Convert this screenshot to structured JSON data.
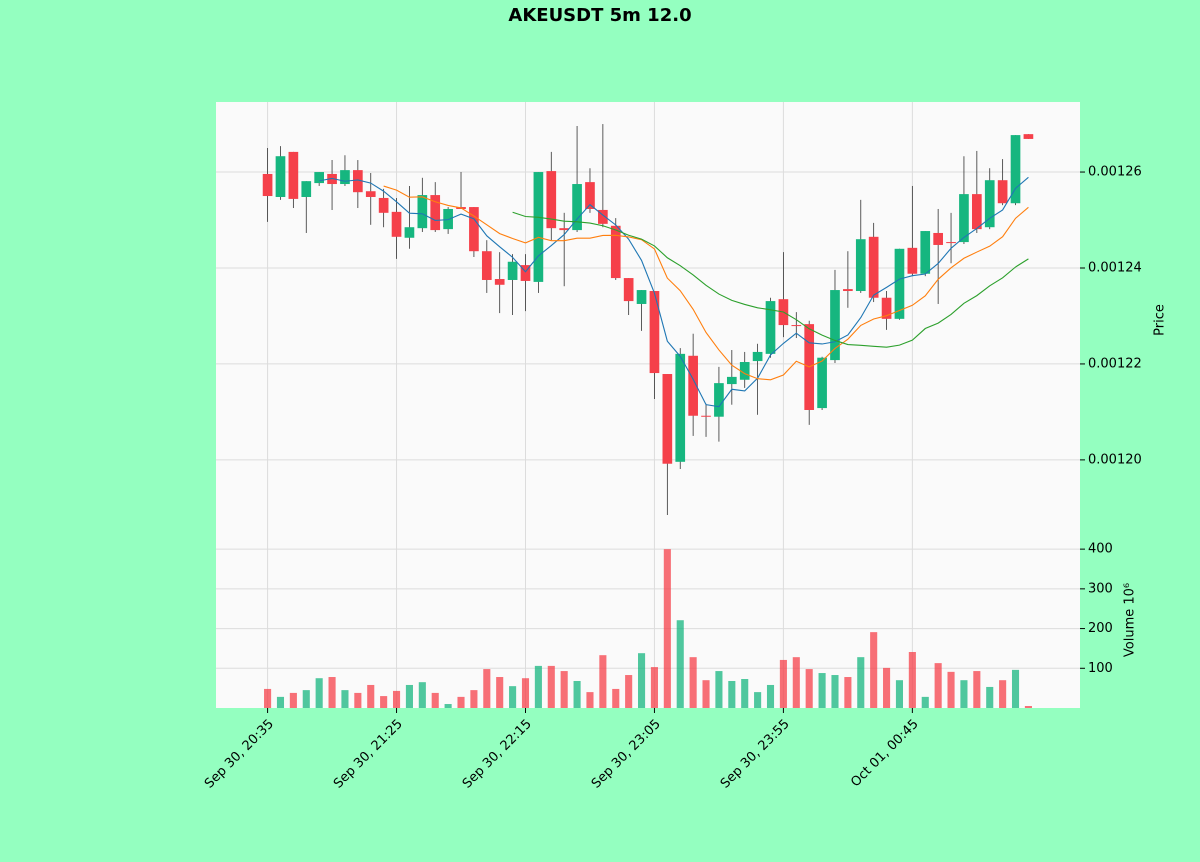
{
  "chart_data": {
    "type": "candlestick",
    "title": "AKEUSDT 5m 12.0",
    "ylabel": "Price",
    "volume_label": "Volume  10⁶",
    "categories": [
      "Sep 30, 20:35",
      null,
      null,
      null,
      null,
      null,
      null,
      null,
      null,
      null,
      "Sep 30, 21:25",
      null,
      null,
      null,
      null,
      null,
      null,
      null,
      null,
      null,
      "Sep 30, 22:15",
      null,
      null,
      null,
      null,
      null,
      null,
      null,
      null,
      null,
      "Sep 30, 23:05",
      null,
      null,
      null,
      null,
      null,
      null,
      null,
      null,
      null,
      "Sep 30, 23:55",
      null,
      null,
      null,
      null,
      null,
      null,
      null,
      null,
      null,
      "Oct 01, 00:45",
      null,
      null,
      null,
      null,
      null,
      null,
      null,
      null,
      null
    ],
    "open": [
      0.0012596,
      0.0012548,
      0.0012642,
      0.0012548,
      0.0012577,
      0.0012596,
      0.0012575,
      0.0012604,
      0.001256,
      0.0012546,
      0.0012517,
      0.0012463,
      0.0012483,
      0.0012552,
      0.0012481,
      0.0012527,
      0.0012527,
      0.0012435,
      0.0012377,
      0.0012375,
      0.0012406,
      0.0012371,
      0.0012602,
      0.0012483,
      0.0012479,
      0.0012579,
      0.0012521,
      0.0012488,
      0.0012379,
      0.0012325,
      0.0012352,
      0.0012179,
      0.0011996,
      0.0012217,
      0.0012092,
      0.001209,
      0.0012158,
      0.0012167,
      0.0012206,
      0.0012221,
      0.0012335,
      0.0012281,
      0.0012283,
      0.0012108,
      0.0012208,
      0.0012356,
      0.0012352,
      0.0012465,
      0.0012338,
      0.0012294,
      0.0012442,
      0.0012388,
      0.0012473,
      0.0012454,
      0.0012454,
      0.0012554,
      0.0012485,
      0.0012583,
      0.0012535,
      0.0012679
    ],
    "high": [
      0.001265,
      0.0012654,
      0.0012642,
      0.0012581,
      0.00126,
      0.0012625,
      0.0012635,
      0.0012625,
      0.0012598,
      0.0012565,
      0.0012546,
      0.0012571,
      0.0012588,
      0.0012579,
      0.0012527,
      0.00126,
      0.0012527,
      0.0012458,
      0.0012433,
      0.0012429,
      0.0012429,
      0.00126,
      0.0012642,
      0.0012515,
      0.0012696,
      0.0012608,
      0.00127,
      0.0012504,
      0.0012379,
      0.0012354,
      0.0012352,
      0.0012179,
      0.0012233,
      0.0012263,
      0.0012117,
      0.0012194,
      0.0012229,
      0.0012225,
      0.0012242,
      0.0012338,
      0.0012433,
      0.0012308,
      0.001229,
      0.0012215,
      0.0012396,
      0.0012435,
      0.0012542,
      0.0012494,
      0.0012352,
      0.001244,
      0.0012571,
      0.0012477,
      0.0012523,
      0.0012515,
      0.0012633,
      0.0012644,
      0.0012608,
      0.0012627,
      0.0012677,
      0.0012679
    ],
    "low": [
      0.0012496,
      0.0012542,
      0.0012525,
      0.0012473,
      0.0012571,
      0.0012521,
      0.0012571,
      0.0012525,
      0.001249,
      0.0012485,
      0.0012419,
      0.001244,
      0.0012475,
      0.0012475,
      0.0012471,
      0.0012523,
      0.0012423,
      0.0012348,
      0.0012306,
      0.0012302,
      0.001231,
      0.0012348,
      0.0012458,
      0.0012362,
      0.0012475,
      0.0012515,
      0.0012485,
      0.0012375,
      0.0012302,
      0.0012269,
      0.0012127,
      0.0011885,
      0.0011981,
      0.001205,
      0.0012048,
      0.0012038,
      0.0012115,
      0.001215,
      0.0012094,
      0.0012213,
      0.0012256,
      0.0012254,
      0.0012073,
      0.0012104,
      0.0012202,
      0.0012317,
      0.0012348,
      0.0012329,
      0.0012271,
      0.0012292,
      0.0012383,
      0.0012383,
      0.0012325,
      0.001241,
      0.001245,
      0.0012473,
      0.0012481,
      0.0012531,
      0.0012531,
      0.0012669
    ],
    "close": [
      0.001255,
      0.0012633,
      0.0012544,
      0.0012581,
      0.00126,
      0.0012575,
      0.0012604,
      0.0012558,
      0.0012548,
      0.0012515,
      0.0012465,
      0.0012485,
      0.0012552,
      0.0012479,
      0.0012523,
      0.0012523,
      0.0012435,
      0.0012375,
      0.0012365,
      0.0012413,
      0.0012373,
      0.00126,
      0.0012483,
      0.0012479,
      0.0012575,
      0.0012523,
      0.0012492,
      0.0012379,
      0.0012331,
      0.0012354,
      0.0012181,
      0.0011992,
      0.0012221,
      0.0012092,
      0.001209,
      0.001216,
      0.0012173,
      0.0012204,
      0.0012225,
      0.0012331,
      0.0012281,
      0.0012279,
      0.0012104,
      0.0012213,
      0.0012354,
      0.0012352,
      0.001246,
      0.0012338,
      0.0012294,
      0.001244,
      0.0012388,
      0.0012477,
      0.0012448,
      0.0012452,
      0.0012554,
      0.0012481,
      0.0012583,
      0.0012535,
      0.0012677,
      0.0012669
    ],
    "volume": [
      48,
      28,
      38,
      45,
      75,
      78,
      45,
      38,
      58,
      30,
      43,
      58,
      65,
      38,
      10,
      28,
      45,
      98,
      78,
      55,
      75,
      106,
      106,
      93,
      68,
      40,
      133,
      48,
      83,
      138,
      103,
      400,
      221,
      128,
      70,
      93,
      68,
      73,
      40,
      58,
      121,
      128,
      98,
      88,
      83,
      78,
      128,
      191,
      101,
      70,
      141,
      28,
      113,
      91,
      70,
      93,
      53,
      70,
      96,
      5
    ],
    "moving_averages": [
      {
        "color": "#1f77b4",
        "values": [
          null,
          null,
          null,
          null,
          0.00125816,
          0.00125866,
          0.00125808,
          0.00125836,
          0.0012577,
          0.001256,
          0.0012538,
          0.00125142,
          0.0012513,
          0.00124992,
          0.00125008,
          0.00125124,
          0.00125024,
          0.0012467,
          0.00124442,
          0.00124222,
          0.00123922,
          0.00124252,
          0.00124468,
          0.00124696,
          0.0012502,
          0.0012532,
          0.00125104,
          0.00124896,
          0.001246,
          0.00124158,
          0.00123474,
          0.00122474,
          0.00122158,
          0.0012168,
          0.00121152,
          0.0012111,
          0.00121472,
          0.00121438,
          0.00121704,
          0.00122186,
          0.00122428,
          0.0012264,
          0.0012244,
          0.00122416,
          0.00122462,
          0.00122604,
          0.00122966,
          0.00123434,
          0.00123596,
          0.00123768,
          0.0012384,
          0.00123874,
          0.00124094,
          0.0012441,
          0.00124638,
          0.00124824,
          0.00125036,
          0.0012521,
          0.0012566,
          0.0012589
        ]
      },
      {
        "color": "#ff7f0e",
        "values": [
          null,
          null,
          null,
          null,
          null,
          null,
          null,
          null,
          null,
          0.00125708,
          0.00125623,
          0.00125475,
          0.00125483,
          0.00125381,
          0.00125304,
          0.00125252,
          0.00125083,
          0.001249,
          0.00124717,
          0.00124615,
          0.00124523,
          0.00124638,
          0.00124569,
          0.00124569,
          0.00124621,
          0.00124621,
          0.00124678,
          0.00124682,
          0.00124648,
          0.00124589,
          0.00124397,
          0.00123789,
          0.00123527,
          0.0012314,
          0.00122655,
          0.00122292,
          0.00121973,
          0.00121798,
          0.00121692,
          0.00121669,
          0.00121769,
          0.00122056,
          0.00121939,
          0.0012206,
          0.00122324,
          0.00122516,
          0.00122803,
          0.00122937,
          0.00123006,
          0.00123115,
          0.00123222,
          0.0012342,
          0.00123764,
          0.00124003,
          0.00124203,
          0.00124332,
          0.00124455,
          0.00124652,
          0.00125035,
          0.00125264
        ]
      },
      {
        "color": "#2ca02c",
        "values": [
          null,
          null,
          null,
          null,
          null,
          null,
          null,
          null,
          null,
          null,
          null,
          null,
          null,
          null,
          null,
          null,
          null,
          null,
          null,
          0.001251615,
          0.00125073,
          0.001250565,
          0.0012502,
          0.00124975,
          0.001249625,
          0.001249365,
          0.001248805,
          0.00124791,
          0.001246825,
          0.00124602,
          0.0012446,
          0.001242135,
          0.00124048,
          0.001238545,
          0.00123638,
          0.001234565,
          0.001233255,
          0.0012324,
          0.0012317,
          0.00123129,
          0.00123083,
          0.001229225,
          0.00122733,
          0.001226,
          0.001224895,
          0.00122404,
          0.00122388,
          0.001223675,
          0.00122349,
          0.00122392,
          0.001224955,
          0.00122738,
          0.001228515,
          0.001230315,
          0.001232635,
          0.00123424,
          0.00123629,
          0.001237945,
          0.001240205,
          0.001241895
        ]
      }
    ],
    "up_color": "#16b67f",
    "down_color": "#f5404a",
    "xlim": [
      -4,
      63
    ],
    "ylim": [
      0.0011833,
      0.0012746
    ],
    "yticks": [
      {
        "value": 0.0012,
        "label": "0.00120"
      },
      0.00122,
      0.00124,
      0.00126
    ],
    "volume_ylim": [
      0,
      423
    ],
    "volume_yticks": [
      100,
      200,
      300,
      400
    ],
    "grid": true
  }
}
